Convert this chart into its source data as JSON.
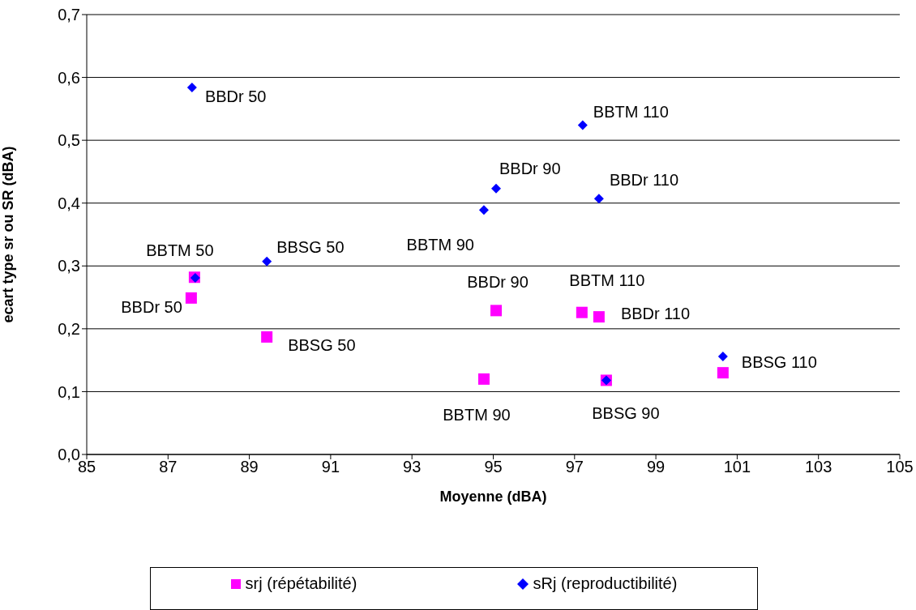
{
  "chart_data": {
    "type": "scatter",
    "xlabel": "Moyenne (dBA)",
    "ylabel": "ecart type sr ou SR (dBA)",
    "xlim": [
      85,
      105
    ],
    "xticks": [
      85,
      87,
      89,
      91,
      93,
      95,
      97,
      99,
      101,
      103,
      105
    ],
    "ylim": [
      0,
      0.7
    ],
    "yticks": [
      {
        "value": 0,
        "label": "0,0"
      },
      {
        "value": 0.1,
        "label": "0,1"
      },
      {
        "value": 0.2,
        "label": "0,2"
      },
      {
        "value": 0.3,
        "label": "0,3"
      },
      {
        "value": 0.4,
        "label": "0,4"
      },
      {
        "value": 0.5,
        "label": "0,5"
      },
      {
        "value": 0.6,
        "label": "0,6"
      },
      {
        "value": 0.7,
        "label": "0,7"
      }
    ],
    "grid": "y",
    "legend": "bottom",
    "series": [
      {
        "name": "srj (répétabilité)",
        "color": "#ff00ff",
        "marker": "square",
        "x": [
          87.65,
          87.57,
          89.43,
          95.07,
          97.18,
          97.6,
          94.77,
          97.78,
          100.65
        ],
        "values": [
          0.282,
          0.249,
          0.187,
          0.229,
          0.226,
          0.219,
          0.12,
          0.118,
          0.13
        ]
      },
      {
        "name": "sRj (reproductibilité)",
        "color": "#0000ff",
        "marker": "diamond",
        "x": [
          87.59,
          97.2,
          95.07,
          97.6,
          94.77,
          89.43,
          87.67,
          100.65,
          97.78
        ],
        "values": [
          0.584,
          0.524,
          0.423,
          0.407,
          0.389,
          0.307,
          0.281,
          0.156,
          0.118
        ]
      }
    ],
    "annotations": [
      {
        "text": "BBDr 50",
        "x": 87.59,
        "y": 0.584
      },
      {
        "text": "BBTM 110",
        "x": 97.2,
        "y": 0.524
      },
      {
        "text": "BBDr 90",
        "x": 95.07,
        "y": 0.423
      },
      {
        "text": "BBDr 110",
        "x": 97.6,
        "y": 0.407
      },
      {
        "text": "BBTM 90",
        "x": 94.77,
        "y": 0.389
      },
      {
        "text": "BBSG 50",
        "x": 89.43,
        "y": 0.307
      },
      {
        "text": "BBTM 50",
        "x": 87.67,
        "y": 0.281
      },
      {
        "text": "BBSG 110",
        "x": 100.65,
        "y": 0.156
      },
      {
        "text": "BBSG 90",
        "x": 97.78,
        "y": 0.118
      },
      {
        "text": "BBDr 50",
        "x": 87.57,
        "y": 0.249
      },
      {
        "text": "BBSG 50",
        "x": 89.43,
        "y": 0.187
      },
      {
        "text": "BBDr 90",
        "x": 95.07,
        "y": 0.229
      },
      {
        "text": "BBTM 110",
        "x": 97.18,
        "y": 0.226
      },
      {
        "text": "BBDr 110",
        "x": 97.6,
        "y": 0.219
      },
      {
        "text": "BBTM 90",
        "x": 94.77,
        "y": 0.12
      }
    ]
  }
}
